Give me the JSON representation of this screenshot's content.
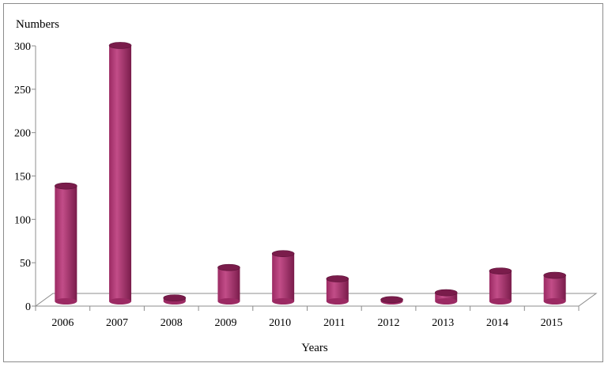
{
  "chart_data": {
    "type": "bar",
    "title": "",
    "xlabel": "Years",
    "ylabel": "Numbers",
    "categories": [
      "2006",
      "2007",
      "2008",
      "2009",
      "2010",
      "2011",
      "2012",
      "2013",
      "2014",
      "2015"
    ],
    "series": [
      {
        "values": [
          133,
          295,
          4,
          39,
          55,
          26,
          2,
          10,
          35,
          30
        ]
      }
    ],
    "ylim": [
      0,
      300
    ],
    "yticks": [
      "0",
      "50",
      "100",
      "150",
      "200",
      "250",
      "300"
    ],
    "grid": false,
    "legend": "none",
    "bar_color": "#9b2a63",
    "bar_top_color": "#7a1c4b",
    "bar_highlight_color": "#c24d88"
  }
}
